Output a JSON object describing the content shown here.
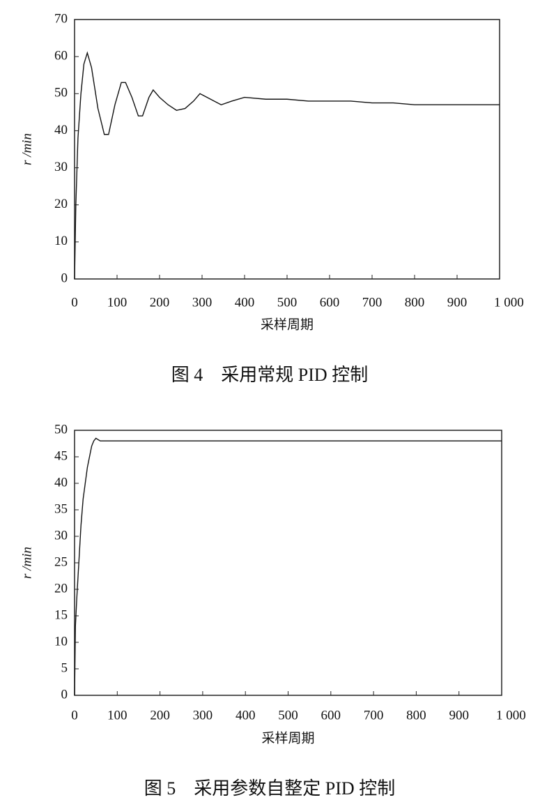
{
  "chart_data": [
    {
      "type": "line",
      "title": "图 4　采用常规 PID 控制",
      "x_label": "采样周期",
      "y_label": "r /min",
      "series": [
        {
          "name": "r",
          "color": "#111111",
          "x": [
            0,
            3,
            8,
            15,
            22,
            30,
            40,
            55,
            70,
            80,
            95,
            110,
            120,
            135,
            150,
            160,
            175,
            185,
            200,
            220,
            240,
            260,
            280,
            295,
            320,
            345,
            370,
            400,
            450,
            500,
            550,
            600,
            650,
            700,
            750,
            800,
            900,
            1000
          ],
          "values": [
            0,
            20,
            38,
            50,
            58,
            61,
            57,
            46,
            39,
            39,
            47,
            53,
            53,
            49,
            44,
            44,
            49,
            51,
            49,
            47,
            45.5,
            46,
            48,
            50,
            48.5,
            47,
            48,
            49,
            48.5,
            48.5,
            48,
            48,
            48,
            47.5,
            47.5,
            47,
            47,
            47
          ]
        }
      ],
      "xlim": [
        0,
        1000
      ],
      "ylim": [
        0,
        70
      ],
      "xticks": [
        0,
        100,
        200,
        300,
        400,
        500,
        600,
        700,
        800,
        900,
        {
          "value": 1000,
          "label": "1 000"
        }
      ],
      "yticks": [
        0,
        10,
        20,
        30,
        40,
        50,
        60,
        70
      ]
    },
    {
      "type": "line",
      "title": "图 5　采用参数自整定 PID 控制",
      "x_label": "采样周期",
      "y_label": "r /min",
      "series": [
        {
          "name": "r",
          "color": "#111111",
          "x": [
            0,
            2,
            5,
            10,
            15,
            20,
            25,
            30,
            35,
            40,
            45,
            50,
            60,
            80,
            100,
            200,
            300,
            400,
            500,
            600,
            700,
            800,
            900,
            1000
          ],
          "values": [
            0,
            13,
            18,
            25,
            32,
            37,
            40,
            43,
            45,
            47,
            48,
            48.5,
            48,
            48,
            48,
            48,
            48,
            48,
            48,
            48,
            48,
            48,
            48,
            48
          ]
        }
      ],
      "xlim": [
        0,
        1000
      ],
      "ylim": [
        0,
        50
      ],
      "xticks": [
        0,
        100,
        200,
        300,
        400,
        500,
        600,
        700,
        800,
        900,
        {
          "value": 1000,
          "label": "1 000"
        }
      ],
      "yticks": [
        0,
        5,
        10,
        15,
        20,
        25,
        30,
        35,
        40,
        45,
        50
      ]
    }
  ]
}
